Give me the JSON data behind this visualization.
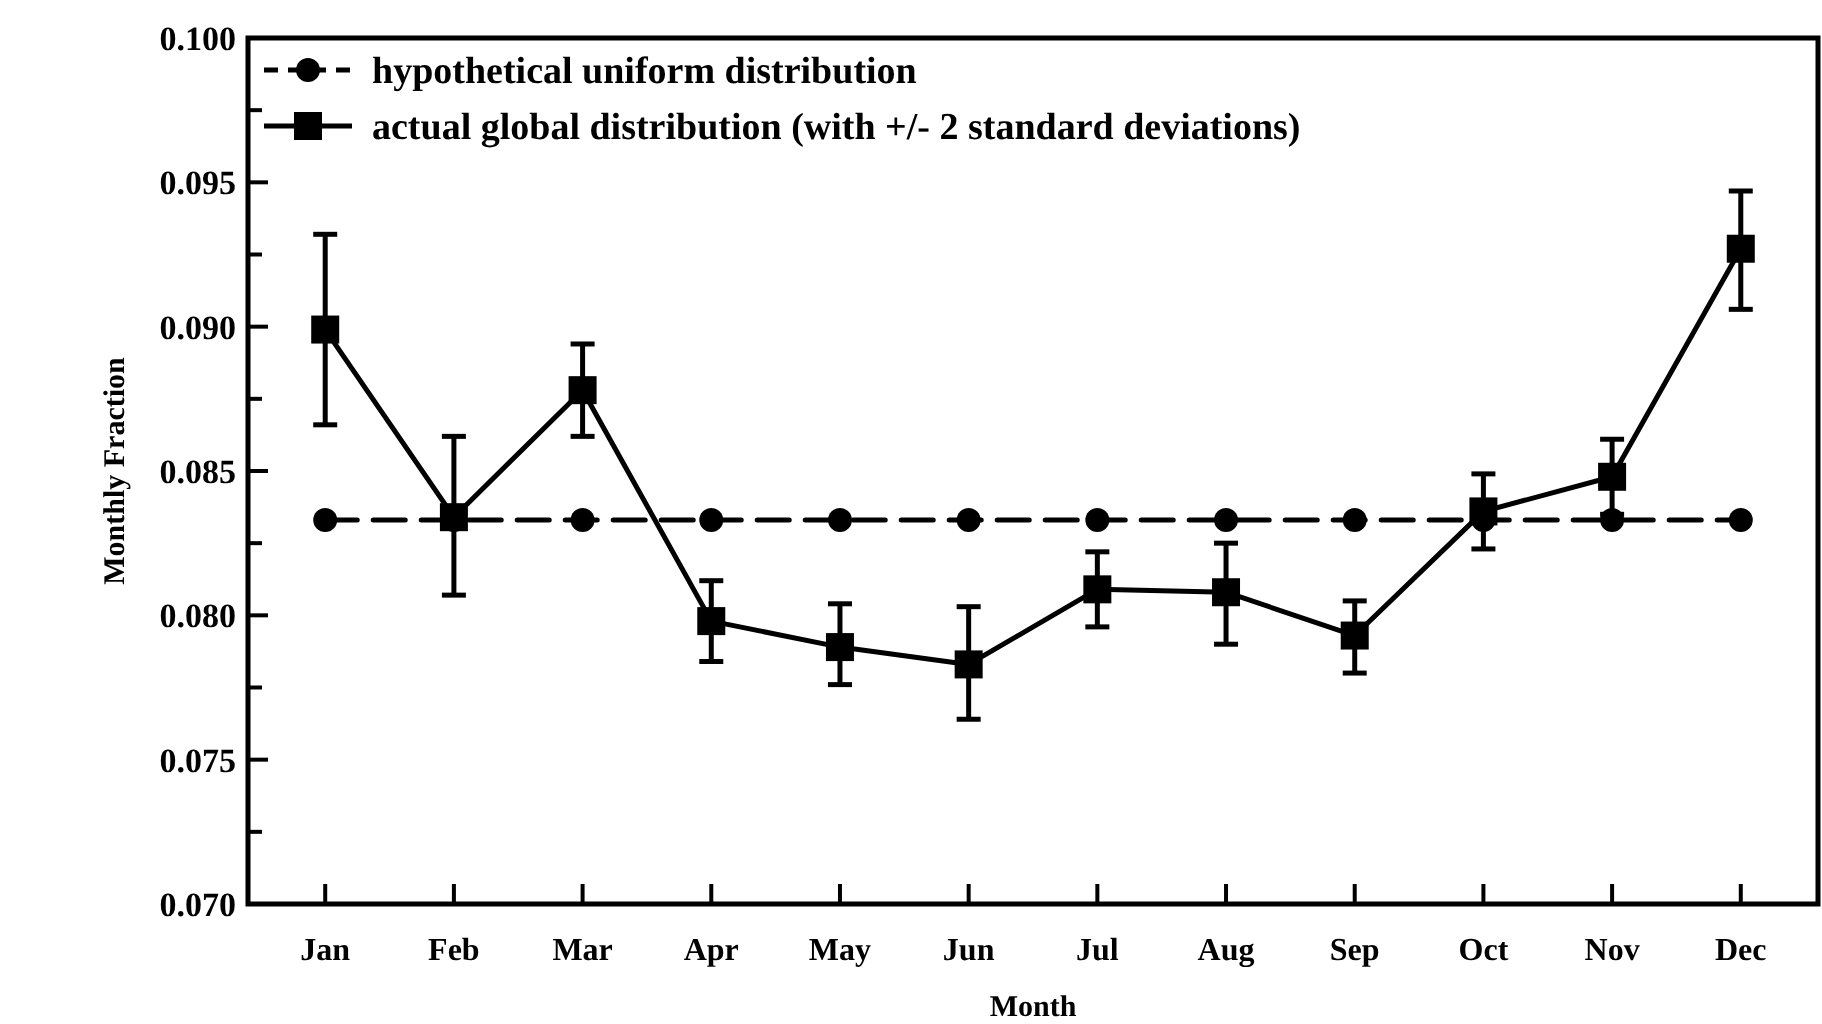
{
  "chart_data": {
    "type": "line",
    "xlabel": "Month",
    "ylabel": "Monthly Fraction",
    "categories": [
      "Jan",
      "Feb",
      "Mar",
      "Apr",
      "May",
      "Jun",
      "Jul",
      "Aug",
      "Sep",
      "Oct",
      "Nov",
      "Dec"
    ],
    "series": [
      {
        "name": "hypothetical uniform distribution",
        "color": "#000000",
        "marker": "circle",
        "line_style": "dashed",
        "values": [
          0.0833,
          0.0833,
          0.0833,
          0.0833,
          0.0833,
          0.0833,
          0.0833,
          0.0833,
          0.0833,
          0.0833,
          0.0833,
          0.0833
        ]
      },
      {
        "name": "actual global distribution (with +/- 2 standard deviations)",
        "color": "#000000",
        "marker": "square",
        "line_style": "solid",
        "values": [
          0.0899,
          0.0834,
          0.0878,
          0.0798,
          0.0789,
          0.0783,
          0.0809,
          0.0808,
          0.0793,
          0.0836,
          0.0848,
          0.0927
        ],
        "errors": [
          [
            0.0866,
            0.0932
          ],
          [
            0.0807,
            0.0862
          ],
          [
            0.0862,
            0.0894
          ],
          [
            0.0784,
            0.0812
          ],
          [
            0.0776,
            0.0804
          ],
          [
            0.0764,
            0.0803
          ],
          [
            0.0796,
            0.0822
          ],
          [
            0.079,
            0.0825
          ],
          [
            0.078,
            0.0805
          ],
          [
            0.0823,
            0.0849
          ],
          [
            0.0835,
            0.0861
          ],
          [
            0.0906,
            0.0947
          ]
        ]
      }
    ],
    "ylim": [
      0.07,
      0.1
    ],
    "yticks": [
      {
        "value": 0.07,
        "label": "0.070"
      },
      {
        "value": 0.0725,
        "label": null
      },
      {
        "value": 0.075,
        "label": "0.075"
      },
      {
        "value": 0.0775,
        "label": null
      },
      {
        "value": 0.08,
        "label": "0.080"
      },
      {
        "value": 0.0825,
        "label": null
      },
      {
        "value": 0.085,
        "label": "0.085"
      },
      {
        "value": 0.0875,
        "label": null
      },
      {
        "value": 0.09,
        "label": "0.090"
      },
      {
        "value": 0.0925,
        "label": null
      },
      {
        "value": 0.095,
        "label": "0.095"
      },
      {
        "value": 0.0975,
        "label": null
      },
      {
        "value": 0.1,
        "label": "0.100"
      }
    ],
    "grid": false,
    "legend": "top left"
  }
}
